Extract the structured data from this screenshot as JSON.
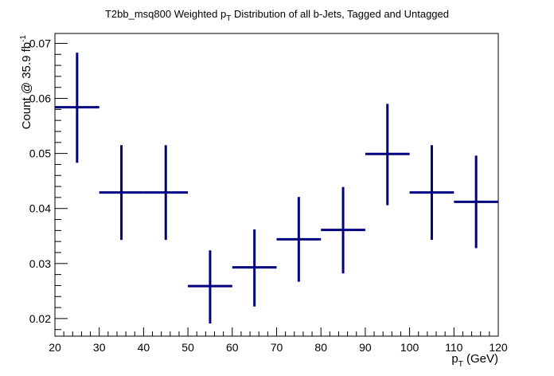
{
  "chart_data": {
    "type": "scatter",
    "style": "error-bars",
    "title": {
      "main": "T2bb_msq800 Weighted p",
      "sub": "T",
      "rest": " Distribution of all b-Jets, Tagged and Untagged"
    },
    "xlabel": {
      "main": "p",
      "sub": "T",
      "rest": " (GeV)"
    },
    "ylabel": {
      "main": "Count @ 35.9 fb",
      "sup": "-1"
    },
    "xlim": [
      20,
      120
    ],
    "ylim": [
      0.0168,
      0.0718
    ],
    "x_ticks": [
      "20",
      "30",
      "40",
      "50",
      "60",
      "70",
      "80",
      "90",
      "100",
      "110",
      "120"
    ],
    "y_ticks": [
      "0.02",
      "0.03",
      "0.04",
      "0.05",
      "0.06",
      "0.07"
    ],
    "series_color": "#000080",
    "grid": false,
    "points": [
      {
        "x": 25,
        "x_err": 5,
        "y": 0.0584,
        "y_low": 0.0483,
        "y_high": 0.0683
      },
      {
        "x": 35,
        "x_err": 5,
        "y": 0.0429,
        "y_low": 0.0343,
        "y_high": 0.0515
      },
      {
        "x": 45,
        "x_err": 5,
        "y": 0.0429,
        "y_low": 0.0343,
        "y_high": 0.0515
      },
      {
        "x": 55,
        "x_err": 5,
        "y": 0.0259,
        "y_low": 0.0191,
        "y_high": 0.0324
      },
      {
        "x": 65,
        "x_err": 5,
        "y": 0.0293,
        "y_low": 0.0222,
        "y_high": 0.0362
      },
      {
        "x": 75,
        "x_err": 5,
        "y": 0.0344,
        "y_low": 0.0267,
        "y_high": 0.0421
      },
      {
        "x": 85,
        "x_err": 5,
        "y": 0.0361,
        "y_low": 0.0282,
        "y_high": 0.0439
      },
      {
        "x": 95,
        "x_err": 5,
        "y": 0.0499,
        "y_low": 0.0406,
        "y_high": 0.059
      },
      {
        "x": 105,
        "x_err": 5,
        "y": 0.0429,
        "y_low": 0.0343,
        "y_high": 0.0515
      },
      {
        "x": 115,
        "x_err": 5,
        "y": 0.0412,
        "y_low": 0.0328,
        "y_high": 0.0496
      }
    ]
  }
}
